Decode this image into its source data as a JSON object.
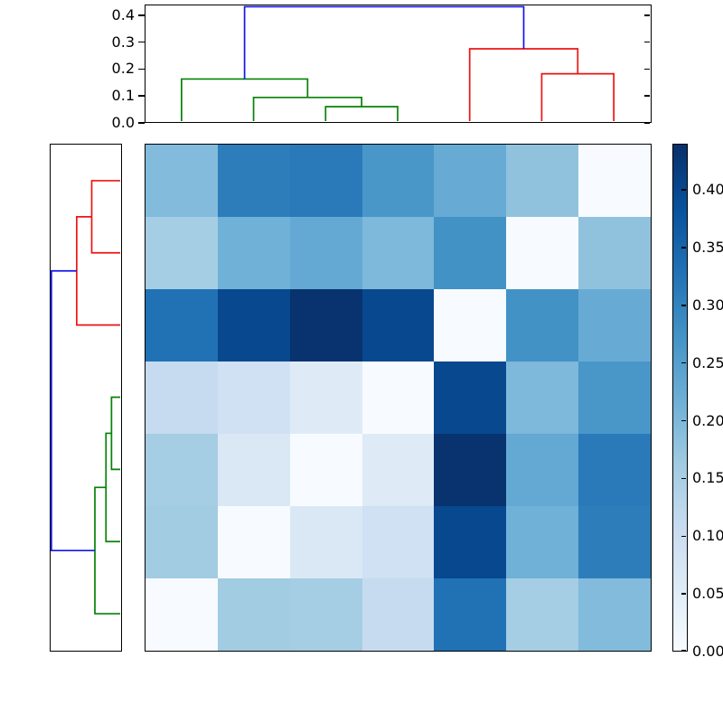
{
  "chart_data": {
    "type": "heatmap",
    "title": "",
    "description": "Hierarchically clustered 7x7 distance matrix (Blues colormap) with dendrogram on top and left and a vertical colorbar on the right; rows are the reverse order of columns so the zero diagonal runs from top-right to bottom-left",
    "n_rows": 7,
    "n_cols": 7,
    "row_order_is_reverse_of_columns": true,
    "matrix": [
      [
        0.195,
        0.31,
        0.315,
        0.265,
        0.225,
        0.18,
        0.0
      ],
      [
        0.155,
        0.215,
        0.23,
        0.2,
        0.275,
        0.0,
        0.18
      ],
      [
        0.33,
        0.4,
        0.435,
        0.4,
        0.0,
        0.275,
        0.225
      ],
      [
        0.11,
        0.09,
        0.055,
        0.0,
        0.4,
        0.2,
        0.265
      ],
      [
        0.155,
        0.065,
        0.0,
        0.055,
        0.435,
        0.23,
        0.315
      ],
      [
        0.16,
        0.0,
        0.065,
        0.09,
        0.4,
        0.215,
        0.31
      ],
      [
        0.0,
        0.16,
        0.155,
        0.11,
        0.33,
        0.155,
        0.195
      ]
    ],
    "vmin": 0.0,
    "vmax": 0.44,
    "colormap": {
      "name": "Blues",
      "anchors": [
        [
          0.0,
          "#f7fbff"
        ],
        [
          0.125,
          "#deebf7"
        ],
        [
          0.25,
          "#c6dbef"
        ],
        [
          0.375,
          "#9ecae1"
        ],
        [
          0.5,
          "#6baed6"
        ],
        [
          0.625,
          "#4292c6"
        ],
        [
          0.75,
          "#2171b5"
        ],
        [
          0.875,
          "#08519c"
        ],
        [
          1.0,
          "#08306b"
        ]
      ]
    },
    "top_dendrogram": {
      "orientation": "top",
      "n_leaves": 7,
      "ylim": [
        0,
        0.44
      ],
      "yticks": [
        {
          "value": 0.0,
          "label": "0.0"
        },
        {
          "value": 0.1,
          "label": "0.1"
        },
        {
          "value": 0.2,
          "label": "0.2"
        },
        {
          "value": 0.3,
          "label": "0.3"
        },
        {
          "value": 0.4,
          "label": "0.4"
        }
      ],
      "merges": [
        {
          "a": 2,
          "b": 3,
          "h": 0.055,
          "color": "green"
        },
        {
          "a": 1,
          "b": 7,
          "h": 0.09,
          "color": "green"
        },
        {
          "a": 0,
          "b": 8,
          "h": 0.16,
          "color": "green"
        },
        {
          "a": 5,
          "b": 6,
          "h": 0.18,
          "color": "red"
        },
        {
          "a": 4,
          "b": 10,
          "h": 0.275,
          "color": "red"
        },
        {
          "a": 9,
          "b": 11,
          "h": 0.435,
          "color": "blue"
        }
      ]
    },
    "left_dendrogram": {
      "orientation": "left",
      "n_leaves": 7,
      "xlim": [
        0,
        0.44
      ],
      "ticks": "none",
      "merges": [
        {
          "a": 0,
          "b": 1,
          "h": 0.18,
          "color": "red"
        },
        {
          "a": 7,
          "b": 2,
          "h": 0.275,
          "color": "red"
        },
        {
          "a": 3,
          "b": 4,
          "h": 0.055,
          "color": "green"
        },
        {
          "a": 9,
          "b": 5,
          "h": 0.09,
          "color": "green"
        },
        {
          "a": 10,
          "b": 6,
          "h": 0.16,
          "color": "green"
        },
        {
          "a": 8,
          "b": 11,
          "h": 0.435,
          "color": "blue"
        }
      ]
    },
    "colorbar": {
      "range": [
        0,
        0.44
      ],
      "ticks": [
        {
          "value": 0.0,
          "label": "0.00"
        },
        {
          "value": 0.05,
          "label": "0.05"
        },
        {
          "value": 0.1,
          "label": "0.10"
        },
        {
          "value": 0.15,
          "label": "0.15"
        },
        {
          "value": 0.2,
          "label": "0.20"
        },
        {
          "value": 0.25,
          "label": "0.25"
        },
        {
          "value": 0.3,
          "label": "0.30"
        },
        {
          "value": 0.35,
          "label": "0.35"
        },
        {
          "value": 0.4,
          "label": "0.40"
        }
      ]
    },
    "link_colors": {
      "blue": "#1414ee",
      "green": "#068206",
      "red": "#ee1414"
    },
    "axis_color": "#000000",
    "background": "#ffffff"
  }
}
